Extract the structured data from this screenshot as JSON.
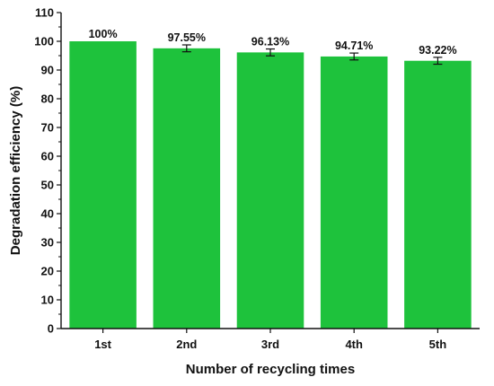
{
  "chart_data": {
    "type": "bar",
    "categories": [
      "1st",
      "2nd",
      "3rd",
      "4th",
      "5th"
    ],
    "values": [
      100,
      97.55,
      96.13,
      94.71,
      93.22
    ],
    "errors": [
      0,
      1.2,
      1.2,
      1.2,
      1.2
    ],
    "data_labels": [
      "100%",
      "97.55%",
      "96.13%",
      "94.71%",
      "93.22%"
    ],
    "xlabel": "Number of recycling times",
    "ylabel": "Degradation efficiency (%)",
    "ylim": [
      0,
      110
    ],
    "yticks": [
      "0",
      "10",
      "20",
      "30",
      "40",
      "50",
      "60",
      "70",
      "80",
      "90",
      "100",
      "110"
    ],
    "grid": false,
    "bar_color": "#1ec23c",
    "error_color": "#111111"
  }
}
